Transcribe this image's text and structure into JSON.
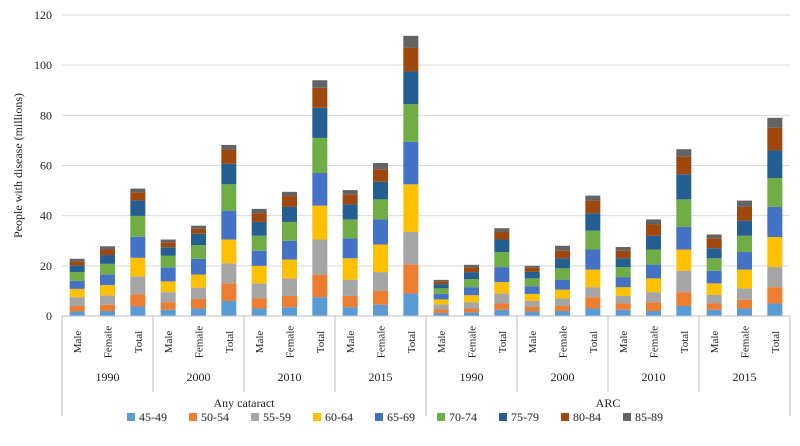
{
  "chart_data": {
    "type": "bar",
    "stacked": true,
    "ylabel": "People with disease (millions)",
    "ylim": [
      0,
      120
    ],
    "yticks": [
      0,
      20,
      40,
      60,
      80,
      100,
      120
    ],
    "grid": true,
    "legend_position": "bottom",
    "colors": [
      "#5b9bd5",
      "#ed7d31",
      "#a5a5a5",
      "#ffc000",
      "#4472c4",
      "#70ad47",
      "#255e91",
      "#9e480e",
      "#636363"
    ],
    "series_names": [
      "45-49",
      "50-54",
      "55-59",
      "60-64",
      "65-69",
      "70-74",
      "75-79",
      "80-84",
      "85-89"
    ],
    "groups": [
      {
        "label": "Any cataract",
        "years": [
          {
            "label": "1990",
            "bars": [
              {
                "label": "Male",
                "values": [
                  1.8,
                  2.2,
                  3.5,
                  3.3,
                  3.2,
                  3.5,
                  2.7,
                  1.6,
                  1.0
                ]
              },
              {
                "label": "Female",
                "values": [
                  2.0,
                  2.5,
                  3.7,
                  4.1,
                  4.2,
                  4.3,
                  3.5,
                  2.2,
                  1.3
                ]
              },
              {
                "label": "Total",
                "values": [
                  3.8,
                  4.8,
                  7.2,
                  7.4,
                  8.4,
                  8.3,
                  6.2,
                  3.2,
                  1.5
                ]
              }
            ]
          },
          {
            "label": "2000",
            "bars": [
              {
                "label": "Male",
                "values": [
                  2.5,
                  3.0,
                  4.0,
                  4.3,
                  5.5,
                  4.7,
                  3.4,
                  2.0,
                  1.1
                ]
              },
              {
                "label": "Female",
                "values": [
                  3.0,
                  3.8,
                  4.5,
                  5.2,
                  6.3,
                  5.5,
                  4.5,
                  2.0,
                  1.2
                ]
              },
              {
                "label": "Total",
                "values": [
                  6.0,
                  7.0,
                  8.0,
                  9.5,
                  11.5,
                  10.5,
                  8.2,
                  5.5,
                  2.0
                ]
              }
            ]
          },
          {
            "label": "2010",
            "bars": [
              {
                "label": "Male",
                "values": [
                  3.0,
                  4.0,
                  6.0,
                  7.0,
                  6.0,
                  6.0,
                  5.5,
                  3.5,
                  1.7
                ]
              },
              {
                "label": "Female",
                "values": [
                  3.5,
                  4.5,
                  7.0,
                  7.5,
                  7.5,
                  7.5,
                  6.0,
                  4.3,
                  1.7
                ]
              },
              {
                "label": "Total",
                "values": [
                  7.5,
                  9.0,
                  14.0,
                  13.5,
                  13.0,
                  14.0,
                  12.0,
                  8.0,
                  3.0
                ]
              }
            ]
          },
          {
            "label": "2015",
            "bars": [
              {
                "label": "Male",
                "values": [
                  3.5,
                  4.5,
                  6.5,
                  8.5,
                  8.0,
                  7.5,
                  6.0,
                  4.0,
                  1.7
                ]
              },
              {
                "label": "Female",
                "values": [
                  4.5,
                  5.5,
                  7.5,
                  11.0,
                  10.0,
                  8.0,
                  7.0,
                  5.0,
                  2.5
                ]
              },
              {
                "label": "Total",
                "values": [
                  9.0,
                  11.5,
                  13.0,
                  19.0,
                  17.0,
                  15.0,
                  13.0,
                  9.5,
                  4.7
                ]
              }
            ]
          }
        ]
      },
      {
        "label": "ARC",
        "years": [
          {
            "label": "1990",
            "bars": [
              {
                "label": "Male",
                "values": [
                  1.2,
                  1.4,
                  2.0,
                  2.0,
                  2.2,
                  2.2,
                  1.7,
                  1.1,
                  0.6
                ]
              },
              {
                "label": "Female",
                "values": [
                  1.5,
                  1.5,
                  2.5,
                  2.8,
                  3.2,
                  3.2,
                  2.8,
                  1.8,
                  1.1
                ]
              },
              {
                "label": "Total",
                "values": [
                  2.5,
                  2.5,
                  4.0,
                  4.5,
                  6.0,
                  6.0,
                  5.0,
                  3.0,
                  1.5
                ]
              }
            ]
          },
          {
            "label": "2000",
            "bars": [
              {
                "label": "Male",
                "values": [
                  1.8,
                  1.8,
                  2.4,
                  2.8,
                  3.0,
                  3.2,
                  2.6,
                  1.6,
                  0.8
                ]
              },
              {
                "label": "Female",
                "values": [
                  2.0,
                  2.0,
                  3.0,
                  3.5,
                  4.0,
                  4.5,
                  4.0,
                  3.0,
                  2.0
                ]
              },
              {
                "label": "Total",
                "values": [
                  3.0,
                  4.5,
                  4.0,
                  7.0,
                  8.0,
                  7.5,
                  7.0,
                  5.0,
                  2.0
                ]
              }
            ]
          },
          {
            "label": "2010",
            "bars": [
              {
                "label": "Male",
                "values": [
                  2.5,
                  2.5,
                  3.0,
                  3.5,
                  4.0,
                  4.0,
                  3.5,
                  3.0,
                  1.5
                ]
              },
              {
                "label": "Female",
                "values": [
                  2.0,
                  3.5,
                  4.0,
                  5.5,
                  5.5,
                  6.0,
                  5.5,
                  4.5,
                  2.0
                ]
              },
              {
                "label": "Total",
                "values": [
                  4.0,
                  5.5,
                  8.5,
                  8.5,
                  9.0,
                  11.0,
                  10.0,
                  7.0,
                  3.0
                ]
              }
            ]
          },
          {
            "label": "2015",
            "bars": [
              {
                "label": "Male",
                "values": [
                  2.5,
                  2.5,
                  3.5,
                  4.5,
                  5.0,
                  5.0,
                  4.0,
                  4.0,
                  1.5
                ]
              },
              {
                "label": "Female",
                "values": [
                  3.0,
                  3.5,
                  4.5,
                  7.5,
                  7.0,
                  6.5,
                  6.0,
                  5.5,
                  2.5
                ]
              },
              {
                "label": "Total",
                "values": [
                  5.0,
                  6.5,
                  8.0,
                  12.0,
                  12.0,
                  11.5,
                  11.0,
                  9.0,
                  4.0
                ]
              }
            ]
          }
        ]
      }
    ]
  }
}
